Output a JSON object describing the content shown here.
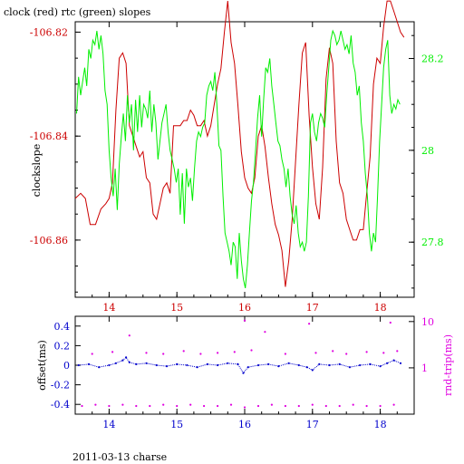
{
  "title": "clock (red) rtc (green) slopes",
  "footer": "2011-03-13 charse",
  "colors": {
    "red": "#cc0000",
    "green": "#00ee00",
    "blue": "#0000cc",
    "magenta": "#e000e0",
    "black": "#000000"
  },
  "chart_data": [
    {
      "type": "line",
      "title": "clock (red) rtc (green) slopes",
      "xlim": [
        13.5,
        18.5
      ],
      "x_ticks": [
        "14",
        "15",
        "16",
        "17",
        "18"
      ],
      "ylabel_left": "clockslope",
      "ylim_left": [
        -106.871,
        -106.818
      ],
      "y_ticks_left": [
        "-106.82",
        "-106.84",
        "-106.86"
      ],
      "ylim_right": [
        27.68,
        28.28
      ],
      "y_ticks_right": [
        "28.2",
        "28",
        "27.8"
      ],
      "series": [
        {
          "name": "clock",
          "axis": "left",
          "color": "#cc0000",
          "x": [
            13.5,
            13.58,
            13.65,
            13.72,
            13.8,
            13.88,
            13.95,
            14.0,
            14.05,
            14.1,
            14.15,
            14.2,
            14.25,
            14.3,
            14.35,
            14.4,
            14.45,
            14.5,
            14.55,
            14.6,
            14.65,
            14.7,
            14.75,
            14.8,
            14.85,
            14.9,
            14.95,
            15.0,
            15.05,
            15.1,
            15.15,
            15.2,
            15.25,
            15.3,
            15.35,
            15.4,
            15.45,
            15.5,
            15.55,
            15.6,
            15.65,
            15.7,
            15.75,
            15.8,
            15.85,
            15.9,
            15.95,
            16.0,
            16.05,
            16.1,
            16.15,
            16.2,
            16.25,
            16.3,
            16.35,
            16.4,
            16.45,
            16.5,
            16.55,
            16.6,
            16.65,
            16.7,
            16.75,
            16.8,
            16.85,
            16.9,
            16.95,
            17.0,
            17.05,
            17.1,
            17.15,
            17.2,
            17.25,
            17.3,
            17.35,
            17.4,
            17.45,
            17.5,
            17.55,
            17.6,
            17.65,
            17.7,
            17.75,
            17.8,
            17.85,
            17.9,
            17.95,
            18.0,
            18.05,
            18.1,
            18.15,
            18.2,
            18.25,
            18.3,
            18.35
          ],
          "y": [
            -106.852,
            -106.851,
            -106.852,
            -106.857,
            -106.857,
            -106.854,
            -106.853,
            -106.852,
            -106.849,
            -106.835,
            -106.825,
            -106.824,
            -106.826,
            -106.838,
            -106.84,
            -106.842,
            -106.844,
            -106.843,
            -106.848,
            -106.849,
            -106.855,
            -106.856,
            -106.853,
            -106.85,
            -106.849,
            -106.851,
            -106.838,
            -106.838,
            -106.838,
            -106.837,
            -106.837,
            -106.835,
            -106.836,
            -106.838,
            -106.838,
            -106.837,
            -106.84,
            -106.838,
            -106.834,
            -106.83,
            -106.827,
            -106.82,
            -106.814,
            -106.822,
            -106.826,
            -106.834,
            -106.843,
            -106.848,
            -106.85,
            -106.851,
            -106.848,
            -106.84,
            -106.838,
            -106.842,
            -106.848,
            -106.853,
            -106.857,
            -106.859,
            -106.862,
            -106.869,
            -106.864,
            -106.856,
            -106.845,
            -106.834,
            -106.824,
            -106.822,
            -106.836,
            -106.846,
            -106.853,
            -106.856,
            -106.846,
            -106.829,
            -106.823,
            -106.826,
            -106.841,
            -106.849,
            -106.851,
            -106.856,
            -106.858,
            -106.86,
            -106.86,
            -106.858,
            -106.858,
            -106.851,
            -106.844,
            -106.83,
            -106.825,
            -106.826,
            -106.819,
            -106.814,
            -106.814,
            -106.816,
            -106.818,
            -106.82,
            -106.821
          ]
        },
        {
          "name": "rtc",
          "axis": "right",
          "color": "#00ee00",
          "x": [
            13.52,
            13.55,
            13.58,
            13.61,
            13.64,
            13.67,
            13.7,
            13.73,
            13.76,
            13.79,
            13.82,
            13.85,
            13.88,
            13.91,
            13.94,
            13.97,
            14.0,
            14.03,
            14.06,
            14.09,
            14.12,
            14.15,
            14.18,
            14.21,
            14.24,
            14.27,
            14.3,
            14.33,
            14.36,
            14.39,
            14.42,
            14.45,
            14.48,
            14.51,
            14.54,
            14.57,
            14.6,
            14.63,
            14.66,
            14.69,
            14.72,
            14.75,
            14.78,
            14.81,
            14.84,
            14.87,
            14.9,
            14.93,
            14.96,
            14.99,
            15.02,
            15.05,
            15.08,
            15.11,
            15.14,
            15.17,
            15.2,
            15.23,
            15.26,
            15.29,
            15.32,
            15.35,
            15.38,
            15.41,
            15.44,
            15.47,
            15.5,
            15.53,
            15.56,
            15.59,
            15.62,
            15.65,
            15.68,
            15.71,
            15.74,
            15.77,
            15.8,
            15.83,
            15.86,
            15.89,
            15.92,
            15.95,
            15.98,
            16.01,
            16.04,
            16.07,
            16.1,
            16.13,
            16.16,
            16.19,
            16.22,
            16.25,
            16.28,
            16.31,
            16.34,
            16.37,
            16.4,
            16.43,
            16.46,
            16.49,
            16.52,
            16.55,
            16.58,
            16.61,
            16.64,
            16.67,
            16.7,
            16.73,
            16.76,
            16.79,
            16.82,
            16.85,
            16.88,
            16.91,
            16.94,
            16.97,
            17.0,
            17.03,
            17.06,
            17.09,
            17.12,
            17.15,
            17.18,
            17.21,
            17.24,
            17.27,
            17.3,
            17.33,
            17.36,
            17.39,
            17.42,
            17.45,
            17.48,
            17.51,
            17.54,
            17.57,
            17.6,
            17.63,
            17.66,
            17.69,
            17.72,
            17.75,
            17.78,
            17.81,
            17.84,
            17.87,
            17.9,
            17.93,
            17.96,
            17.99,
            18.02,
            18.05,
            18.08,
            18.11,
            18.14,
            18.17,
            18.2,
            18.23,
            18.26,
            18.29
          ],
          "y": [
            28.08,
            28.16,
            28.12,
            28.15,
            28.18,
            28.14,
            28.22,
            28.2,
            28.24,
            28.23,
            28.26,
            28.22,
            28.25,
            28.21,
            28.13,
            28.1,
            28.0,
            27.94,
            27.9,
            27.96,
            27.87,
            27.97,
            28.03,
            28.08,
            28.02,
            28.12,
            28.06,
            28.1,
            28.0,
            28.11,
            28.04,
            28.12,
            28.05,
            28.1,
            28.09,
            28.07,
            28.13,
            28.04,
            28.1,
            28.06,
            27.98,
            28.02,
            28.06,
            28.08,
            28.1,
            28.04,
            28.0,
            27.98,
            27.96,
            27.93,
            27.96,
            27.86,
            27.95,
            27.84,
            27.96,
            27.92,
            27.94,
            27.89,
            27.96,
            28.02,
            28.04,
            28.03,
            28.05,
            28.06,
            28.12,
            28.14,
            28.15,
            28.13,
            28.17,
            28.1,
            28.01,
            28.0,
            27.9,
            27.82,
            27.8,
            27.78,
            27.75,
            27.8,
            27.79,
            27.72,
            27.82,
            27.76,
            27.72,
            27.7,
            27.75,
            27.82,
            27.89,
            27.93,
            28.0,
            28.07,
            28.12,
            28.03,
            28.11,
            28.18,
            28.17,
            28.2,
            28.14,
            28.1,
            28.06,
            28.02,
            28.01,
            27.98,
            27.96,
            27.92,
            27.96,
            27.9,
            27.86,
            27.84,
            27.88,
            27.82,
            27.79,
            27.8,
            27.78,
            27.8,
            27.9,
            28.06,
            28.08,
            28.04,
            28.02,
            28.06,
            28.08,
            28.07,
            28.05,
            28.12,
            28.18,
            28.24,
            28.26,
            28.25,
            28.23,
            28.24,
            28.26,
            28.24,
            28.22,
            28.23,
            28.21,
            28.25,
            28.19,
            28.17,
            28.12,
            28.14,
            28.06,
            28.02,
            27.95,
            27.9,
            27.82,
            27.78,
            27.82,
            27.8,
            27.9,
            28.02,
            28.1,
            28.18,
            28.22,
            28.24,
            28.12,
            28.08,
            28.1,
            28.09,
            28.11,
            28.1
          ]
        }
      ]
    },
    {
      "type": "scatter",
      "xlim": [
        13.5,
        18.5
      ],
      "x_ticks": [
        "14",
        "15",
        "16",
        "17",
        "18"
      ],
      "ylabel_left": "offset(ms)",
      "ylim_left": [
        -0.5,
        0.5
      ],
      "y_ticks_left": [
        "0.4",
        "0.2",
        "0",
        "-0.2",
        "-0.4"
      ],
      "ylabel_right": "rnd-trip(ms)",
      "y_scale_right": "log",
      "ylim_right": [
        0.1,
        13
      ],
      "y_ticks_right": [
        "10",
        "1"
      ],
      "series": [
        {
          "name": "offset",
          "axis": "left",
          "color": "#0000cc",
          "x": [
            13.55,
            13.7,
            13.85,
            14.0,
            14.1,
            14.2,
            14.25,
            14.3,
            14.4,
            14.55,
            14.7,
            14.85,
            15.0,
            15.15,
            15.3,
            15.45,
            15.6,
            15.75,
            15.9,
            15.98,
            16.05,
            16.2,
            16.35,
            16.5,
            16.65,
            16.8,
            16.92,
            17.0,
            17.1,
            17.25,
            17.4,
            17.55,
            17.7,
            17.85,
            18.0,
            18.1,
            18.2,
            18.3
          ],
          "y": [
            0.0,
            0.01,
            -0.02,
            0.0,
            0.02,
            0.05,
            0.08,
            0.03,
            0.01,
            0.02,
            0.0,
            -0.01,
            0.01,
            0.0,
            -0.02,
            0.01,
            0.0,
            0.02,
            0.01,
            -0.08,
            -0.02,
            0.0,
            0.01,
            -0.01,
            0.02,
            0.0,
            -0.02,
            -0.05,
            0.01,
            0.0,
            0.01,
            -0.02,
            0.0,
            0.01,
            -0.01,
            0.02,
            0.05,
            0.02
          ]
        },
        {
          "name": "rnd-trip",
          "axis": "right",
          "color": "#e000e0",
          "x": [
            13.6,
            13.8,
            14.0,
            14.2,
            14.4,
            14.6,
            14.8,
            15.0,
            15.2,
            15.4,
            15.6,
            15.8,
            16.0,
            16.2,
            16.4,
            16.6,
            16.8,
            17.0,
            17.2,
            17.4,
            17.6,
            17.8,
            18.0,
            18.2
          ],
          "y": [
            0.15,
            0.16,
            0.15,
            0.16,
            0.15,
            0.15,
            0.16,
            0.15,
            0.16,
            0.15,
            0.15,
            0.16,
            0.14,
            0.15,
            0.16,
            0.15,
            0.15,
            0.16,
            0.15,
            0.15,
            0.16,
            0.15,
            0.15,
            0.16
          ]
        },
        {
          "name": "rnd-trip outliers",
          "axis": "right",
          "color": "#e000e0",
          "x": [
            13.75,
            14.05,
            14.3,
            14.55,
            14.8,
            15.1,
            15.35,
            15.6,
            15.85,
            16.0,
            16.1,
            16.3,
            16.6,
            16.95,
            17.05,
            17.3,
            17.5,
            17.8,
            18.05,
            18.15,
            18.25
          ],
          "y": [
            2.0,
            2.2,
            5.0,
            2.1,
            2.0,
            2.3,
            2.0,
            2.1,
            2.2,
            10.5,
            2.4,
            6.0,
            2.0,
            9.0,
            2.1,
            2.3,
            2.0,
            2.2,
            2.1,
            9.5,
            2.3
          ]
        }
      ]
    }
  ]
}
